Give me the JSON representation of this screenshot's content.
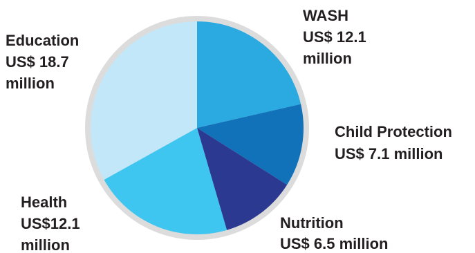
{
  "chart_data": {
    "type": "pie",
    "start_angle_deg": 0,
    "direction": "clockwise",
    "colors": {
      "rim": "#dcdcdc",
      "text": "#231f20"
    },
    "slices": [
      {
        "category": "WASH",
        "value": 12.1,
        "label_lines": [
          "WASH",
          "US$ 12.1",
          "million"
        ],
        "color": "#2ba9e1"
      },
      {
        "category": "Child Protection",
        "value": 7.1,
        "label_lines": [
          "Child Protection",
          "US$ 7.1 million"
        ],
        "color": "#1172ba"
      },
      {
        "category": "Nutrition",
        "value": 6.5,
        "label_lines": [
          "Nutrition",
          "US$ 6.5 million"
        ],
        "color": "#2b3990"
      },
      {
        "category": "Health",
        "value": 12.1,
        "label_lines": [
          "Health",
          "US$12.1",
          "million"
        ],
        "color": "#3ec5f0"
      },
      {
        "category": "Education",
        "value": 18.7,
        "label_lines": [
          "Education",
          "US$ 18.7",
          "million"
        ],
        "color": "#c2e7f8"
      }
    ]
  }
}
